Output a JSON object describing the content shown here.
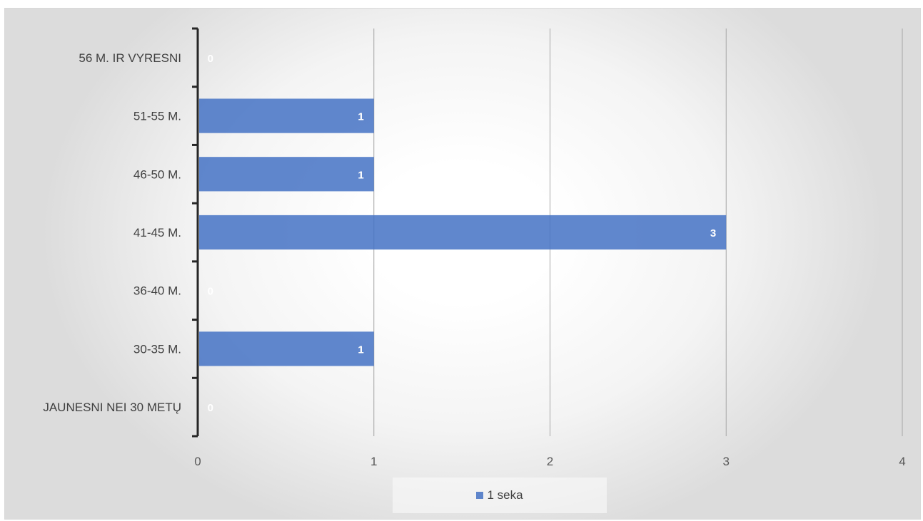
{
  "chart_data": {
    "type": "bar",
    "orientation": "horizontal",
    "categories": [
      "JAUNESNI NEI 30 METŲ",
      "30-35 M.",
      "36-40 M.",
      "41-45 M.",
      "46-50 M.",
      "51-55 M.",
      "56 M. IR VYRESNI"
    ],
    "series": [
      {
        "name": "1 seka",
        "values": [
          0,
          1,
          0,
          3,
          1,
          1,
          0
        ],
        "color": "#4472c4"
      }
    ],
    "xlim": [
      0,
      4
    ],
    "xticks": [
      "0",
      "1",
      "2",
      "3",
      "4"
    ],
    "grid": true,
    "legend": "bottom"
  }
}
